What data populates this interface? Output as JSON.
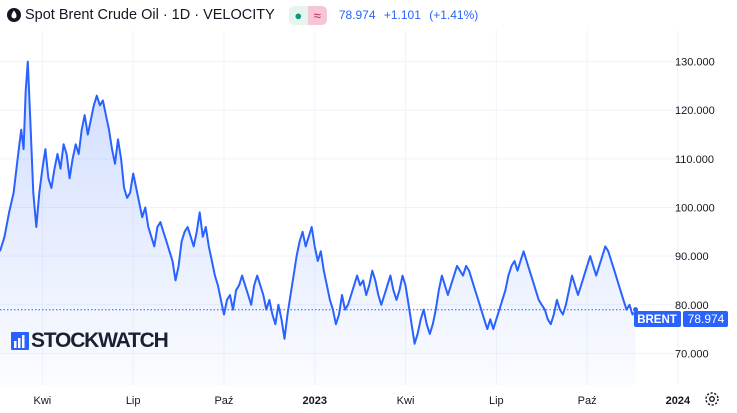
{
  "header": {
    "title": "Spot Brent Crude Oil · 1D · VELOCITY",
    "badge_green": "●",
    "badge_pink": "≈",
    "last": "78.974",
    "change": "+1.101",
    "change_pct": "(+1.41%)"
  },
  "watermark": "STOCKWATCH",
  "price_tag": {
    "symbol": "BRENT",
    "value": "78.974"
  },
  "colors": {
    "line": "#2962ff",
    "tag": "#2962ff",
    "text": "#131722"
  },
  "chart_data": {
    "type": "area",
    "title": "Spot Brent Crude Oil · 1D · VELOCITY",
    "ylim": [
      63.5,
      136.5
    ],
    "y_ticks": [
      {
        "value": 70,
        "label": "70.000"
      },
      {
        "value": 80,
        "label": "80.000"
      },
      {
        "value": 90,
        "label": "90.000"
      },
      {
        "value": 100,
        "label": "100.000"
      },
      {
        "value": 110,
        "label": "110.000"
      },
      {
        "value": 120,
        "label": "120.000"
      },
      {
        "value": 130,
        "label": "130.000"
      }
    ],
    "x_ticks": [
      {
        "x": 14,
        "label": "Kwi"
      },
      {
        "x": 17,
        "label": "Lip"
      },
      {
        "x": 20,
        "label": "Paź"
      },
      {
        "x": 23,
        "label": "2023"
      },
      {
        "x": 26,
        "label": "Kwi"
      },
      {
        "x": 29,
        "label": "Lip"
      },
      {
        "x": 32,
        "label": "Paź"
      },
      {
        "x": 35,
        "label": "2024"
      }
    ],
    "xlim": [
      12.6,
      35.3
    ],
    "x_unit": "months (1 = Jan 2021)",
    "last_value": 78.974,
    "series": [
      {
        "values": [
          [
            12.6,
            91
          ],
          [
            12.75,
            94
          ],
          [
            12.9,
            99
          ],
          [
            13.05,
            103
          ],
          [
            13.2,
            111
          ],
          [
            13.3,
            116
          ],
          [
            13.38,
            112
          ],
          [
            13.45,
            124
          ],
          [
            13.52,
            130
          ],
          [
            13.6,
            118
          ],
          [
            13.7,
            103
          ],
          [
            13.8,
            96
          ],
          [
            13.9,
            103
          ],
          [
            14.0,
            108
          ],
          [
            14.1,
            112
          ],
          [
            14.2,
            106
          ],
          [
            14.3,
            104
          ],
          [
            14.4,
            108
          ],
          [
            14.5,
            111
          ],
          [
            14.6,
            108
          ],
          [
            14.7,
            113
          ],
          [
            14.8,
            111
          ],
          [
            14.9,
            106
          ],
          [
            15.0,
            110
          ],
          [
            15.1,
            113
          ],
          [
            15.2,
            111
          ],
          [
            15.3,
            116
          ],
          [
            15.4,
            119
          ],
          [
            15.5,
            115
          ],
          [
            15.6,
            118
          ],
          [
            15.7,
            121
          ],
          [
            15.8,
            123
          ],
          [
            15.9,
            121
          ],
          [
            16.0,
            122
          ],
          [
            16.1,
            119
          ],
          [
            16.2,
            116
          ],
          [
            16.3,
            112
          ],
          [
            16.4,
            109
          ],
          [
            16.5,
            114
          ],
          [
            16.6,
            110
          ],
          [
            16.7,
            104
          ],
          [
            16.8,
            102
          ],
          [
            16.9,
            103
          ],
          [
            17.0,
            107
          ],
          [
            17.1,
            104
          ],
          [
            17.2,
            101
          ],
          [
            17.3,
            98
          ],
          [
            17.4,
            100
          ],
          [
            17.5,
            96
          ],
          [
            17.6,
            94
          ],
          [
            17.7,
            92
          ],
          [
            17.8,
            96
          ],
          [
            17.9,
            97
          ],
          [
            18.0,
            95
          ],
          [
            18.1,
            93
          ],
          [
            18.2,
            91
          ],
          [
            18.3,
            89
          ],
          [
            18.4,
            85
          ],
          [
            18.5,
            88
          ],
          [
            18.6,
            93
          ],
          [
            18.7,
            95
          ],
          [
            18.8,
            96
          ],
          [
            18.9,
            94
          ],
          [
            19.0,
            92
          ],
          [
            19.1,
            95
          ],
          [
            19.2,
            99
          ],
          [
            19.3,
            94
          ],
          [
            19.4,
            96
          ],
          [
            19.5,
            92
          ],
          [
            19.6,
            89
          ],
          [
            19.7,
            86
          ],
          [
            19.8,
            84
          ],
          [
            19.9,
            81
          ],
          [
            20.0,
            78
          ],
          [
            20.1,
            81
          ],
          [
            20.2,
            82
          ],
          [
            20.3,
            79
          ],
          [
            20.4,
            83
          ],
          [
            20.5,
            84
          ],
          [
            20.6,
            86
          ],
          [
            20.7,
            84
          ],
          [
            20.8,
            82
          ],
          [
            20.9,
            80
          ],
          [
            21.0,
            84
          ],
          [
            21.1,
            86
          ],
          [
            21.2,
            84
          ],
          [
            21.3,
            82
          ],
          [
            21.4,
            79
          ],
          [
            21.5,
            81
          ],
          [
            21.6,
            78
          ],
          [
            21.7,
            76
          ],
          [
            21.8,
            80
          ],
          [
            21.9,
            77
          ],
          [
            22.0,
            73
          ],
          [
            22.1,
            78
          ],
          [
            22.2,
            82
          ],
          [
            22.3,
            86
          ],
          [
            22.4,
            90
          ],
          [
            22.5,
            93
          ],
          [
            22.6,
            95
          ],
          [
            22.7,
            92
          ],
          [
            22.8,
            94
          ],
          [
            22.9,
            96
          ],
          [
            23.0,
            92
          ],
          [
            23.1,
            89
          ],
          [
            23.2,
            91
          ],
          [
            23.3,
            87
          ],
          [
            23.4,
            84
          ],
          [
            23.5,
            81
          ],
          [
            23.6,
            79
          ],
          [
            23.7,
            76
          ],
          [
            23.8,
            78
          ],
          [
            23.9,
            82
          ],
          [
            24.0,
            79
          ],
          [
            24.1,
            80
          ],
          [
            24.2,
            82
          ],
          [
            24.3,
            84
          ],
          [
            24.4,
            86
          ],
          [
            24.5,
            84
          ],
          [
            24.6,
            85
          ],
          [
            24.7,
            82
          ],
          [
            24.8,
            84
          ],
          [
            24.9,
            87
          ],
          [
            25.0,
            85
          ],
          [
            25.1,
            82
          ],
          [
            25.2,
            80
          ],
          [
            25.3,
            82
          ],
          [
            25.4,
            84
          ],
          [
            25.5,
            86
          ],
          [
            25.6,
            83
          ],
          [
            25.7,
            81
          ],
          [
            25.8,
            83
          ],
          [
            25.9,
            86
          ],
          [
            26.0,
            84
          ],
          [
            26.1,
            80
          ],
          [
            26.2,
            76
          ],
          [
            26.3,
            72
          ],
          [
            26.4,
            74
          ],
          [
            26.5,
            77
          ],
          [
            26.6,
            79
          ],
          [
            26.7,
            76
          ],
          [
            26.8,
            74
          ],
          [
            26.9,
            76
          ],
          [
            27.0,
            79
          ],
          [
            27.1,
            83
          ],
          [
            27.2,
            86
          ],
          [
            27.3,
            84
          ],
          [
            27.4,
            82
          ],
          [
            27.5,
            84
          ],
          [
            27.6,
            86
          ],
          [
            27.7,
            88
          ],
          [
            27.8,
            87
          ],
          [
            27.9,
            86
          ],
          [
            28.0,
            88
          ],
          [
            28.1,
            87
          ],
          [
            28.2,
            85
          ],
          [
            28.3,
            83
          ],
          [
            28.4,
            81
          ],
          [
            28.5,
            79
          ],
          [
            28.6,
            77
          ],
          [
            28.7,
            75
          ],
          [
            28.8,
            77
          ],
          [
            28.9,
            75
          ],
          [
            29.0,
            77
          ],
          [
            29.1,
            79
          ],
          [
            29.2,
            81
          ],
          [
            29.3,
            83
          ],
          [
            29.4,
            86
          ],
          [
            29.5,
            88
          ],
          [
            29.6,
            89
          ],
          [
            29.7,
            87
          ],
          [
            29.8,
            89
          ],
          [
            29.9,
            91
          ],
          [
            30.0,
            89
          ],
          [
            30.1,
            87
          ],
          [
            30.2,
            85
          ],
          [
            30.3,
            83
          ],
          [
            30.4,
            81
          ],
          [
            30.5,
            80
          ],
          [
            30.6,
            79
          ],
          [
            30.7,
            77
          ],
          [
            30.8,
            76
          ],
          [
            30.9,
            78
          ],
          [
            31.0,
            81
          ],
          [
            31.1,
            79
          ],
          [
            31.2,
            78
          ],
          [
            31.3,
            80
          ],
          [
            31.4,
            83
          ],
          [
            31.5,
            86
          ],
          [
            31.6,
            84
          ],
          [
            31.7,
            82
          ],
          [
            31.8,
            84
          ],
          [
            31.9,
            86
          ],
          [
            32.0,
            88
          ],
          [
            32.1,
            90
          ],
          [
            32.2,
            88
          ],
          [
            32.3,
            86
          ],
          [
            32.4,
            88
          ],
          [
            32.5,
            90
          ],
          [
            32.6,
            92
          ],
          [
            32.7,
            91
          ],
          [
            32.8,
            89
          ],
          [
            32.9,
            87
          ],
          [
            33.0,
            85
          ],
          [
            33.1,
            83
          ],
          [
            33.2,
            81
          ],
          [
            33.3,
            79
          ],
          [
            33.4,
            80
          ],
          [
            33.5,
            78
          ],
          [
            33.6,
            79
          ]
        ]
      }
    ]
  }
}
